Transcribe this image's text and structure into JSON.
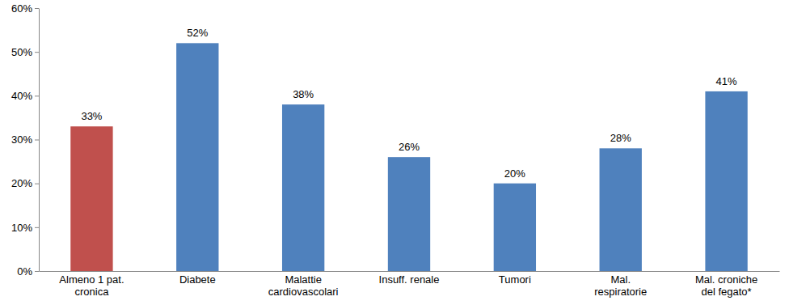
{
  "chart_data": {
    "type": "bar",
    "categories": [
      "Almeno 1 pat.\ncronica",
      "Diabete",
      "Malattie\ncardiovascolari",
      "Insuff. renale",
      "Tumori",
      "Mal.\nrespiratorie",
      "Mal. croniche\ndel fegato*"
    ],
    "values": [
      33,
      52,
      38,
      26,
      20,
      28,
      41
    ],
    "value_labels": [
      "33%",
      "52%",
      "38%",
      "26%",
      "20%",
      "28%",
      "41%"
    ],
    "colors": [
      "#c0504d",
      "#4f81bd",
      "#4f81bd",
      "#4f81bd",
      "#4f81bd",
      "#4f81bd",
      "#4f81bd"
    ],
    "ylim": [
      0,
      60
    ],
    "yticks": [
      {
        "value": 0,
        "label": "0%"
      },
      {
        "value": 10,
        "label": "10%"
      },
      {
        "value": 20,
        "label": "20%"
      },
      {
        "value": 30,
        "label": "30%"
      },
      {
        "value": 40,
        "label": "40%"
      },
      {
        "value": 50,
        "label": "50%"
      },
      {
        "value": 60,
        "label": "60%"
      }
    ],
    "grid": false,
    "data_labels": true
  }
}
